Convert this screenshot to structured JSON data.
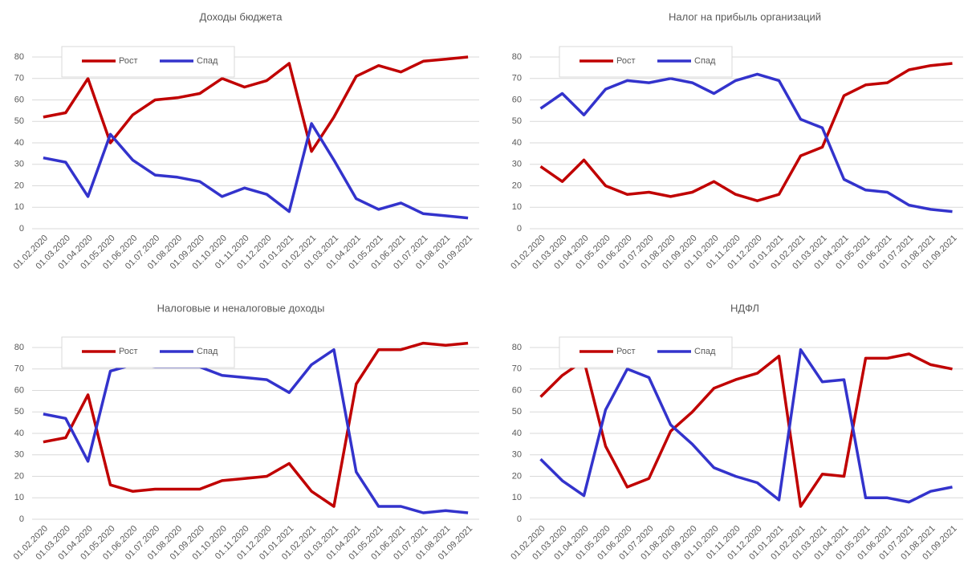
{
  "chart_data": [
    {
      "type": "line",
      "title": "Доходы бюджета",
      "categories": [
        "01.02.2020",
        "01.03.2020",
        "01.04.2020",
        "01.05.2020",
        "01.06.2020",
        "01.07.2020",
        "01.08.2020",
        "01.09.2020",
        "01.10.2020",
        "01.11.2020",
        "01.12.2020",
        "01.01.2021",
        "01.02.2021",
        "01.03.2021",
        "01.04.2021",
        "01.05.2021",
        "01.06.2021",
        "01.07.2021",
        "01.08.2021",
        "01.09.2021"
      ],
      "series": [
        {
          "name": "Рост",
          "color": "#c00000",
          "values": [
            52,
            54,
            70,
            40,
            53,
            60,
            61,
            63,
            70,
            66,
            69,
            77,
            36,
            52,
            71,
            76,
            73,
            78,
            79,
            80
          ]
        },
        {
          "name": "Спад",
          "color": "#3333cc",
          "values": [
            33,
            31,
            15,
            44,
            32,
            25,
            24,
            22,
            15,
            19,
            16,
            8,
            49,
            32,
            14,
            9,
            12,
            7,
            6,
            5
          ]
        }
      ],
      "ylim": [
        0,
        80
      ],
      "yticks": [
        0,
        10,
        20,
        30,
        40,
        50,
        60,
        70,
        80
      ],
      "grid": true,
      "legend": "upper-left"
    },
    {
      "type": "line",
      "title": "Налог  на прибыль организаций",
      "categories": [
        "01.02.2020",
        "01.03.2020",
        "01.04.2020",
        "01.05.2020",
        "01.06.2020",
        "01.07.2020",
        "01.08.2020",
        "01.09.2020",
        "01.10.2020",
        "01.11.2020",
        "01.12.2020",
        "01.01.2021",
        "01.02.2021",
        "01.03.2021",
        "01.04.2021",
        "01.05.2021",
        "01.06.2021",
        "01.07.2021",
        "01.08.2021",
        "01.09.2021"
      ],
      "series": [
        {
          "name": "Рост",
          "color": "#c00000",
          "values": [
            29,
            22,
            32,
            20,
            16,
            17,
            15,
            17,
            22,
            16,
            13,
            16,
            34,
            38,
            62,
            67,
            68,
            74,
            76,
            77
          ]
        },
        {
          "name": "Спад",
          "color": "#3333cc",
          "values": [
            56,
            63,
            53,
            65,
            69,
            68,
            70,
            68,
            63,
            69,
            72,
            69,
            51,
            47,
            23,
            18,
            17,
            11,
            9,
            8
          ]
        }
      ],
      "ylim": [
        0,
        80
      ],
      "yticks": [
        0,
        10,
        20,
        30,
        40,
        50,
        60,
        70,
        80
      ],
      "grid": true,
      "legend": "upper-left"
    },
    {
      "type": "line",
      "title": "Налоговые  и  неналоговые  доходы",
      "categories": [
        "01.02.2020",
        "01.03.2020",
        "01.04.2020",
        "01.05.2020",
        "01.06.2020",
        "01.07.2020",
        "01.08.2020",
        "01.09.2020",
        "01.10.2020",
        "01.11.2020",
        "01.12.2020",
        "01.01.2021",
        "01.02.2021",
        "01.03.2021",
        "01.04.2021",
        "01.05.2021",
        "01.06.2021",
        "01.07.2021",
        "01.08.2021",
        "01.09.2021"
      ],
      "series": [
        {
          "name": "Рост",
          "color": "#c00000",
          "values": [
            36,
            38,
            58,
            16,
            13,
            14,
            14,
            14,
            18,
            19,
            20,
            26,
            13,
            6,
            63,
            79,
            79,
            82,
            81,
            82
          ]
        },
        {
          "name": "Спад",
          "color": "#3333cc",
          "values": [
            49,
            47,
            27,
            69,
            72,
            71,
            71,
            71,
            67,
            66,
            65,
            59,
            72,
            79,
            22,
            6,
            6,
            3,
            4,
            3
          ]
        }
      ],
      "ylim": [
        0,
        85
      ],
      "yticks": [
        0,
        10,
        20,
        30,
        40,
        50,
        60,
        70,
        80
      ],
      "grid": true,
      "legend": "upper-left"
    },
    {
      "type": "line",
      "title": "НДФЛ",
      "categories": [
        "01.02.2020",
        "01.03.2020",
        "01.04.2020",
        "01.05.2020",
        "01.06.2020",
        "01.07.2020",
        "01.08.2020",
        "01.09.2020",
        "01.10.2020",
        "01.11.2020",
        "01.12.2020",
        "01.01.2021",
        "01.02.2021",
        "01.03.2021",
        "01.04.2021",
        "01.05.2021",
        "01.06.2021",
        "01.07.2021",
        "01.08.2021",
        "01.09.2021"
      ],
      "series": [
        {
          "name": "Рост",
          "color": "#c00000",
          "values": [
            57,
            67,
            74,
            34,
            15,
            19,
            41,
            50,
            61,
            65,
            68,
            76,
            6,
            21,
            20,
            75,
            75,
            77,
            72,
            70
          ]
        },
        {
          "name": "Спад",
          "color": "#3333cc",
          "values": [
            28,
            18,
            11,
            51,
            70,
            66,
            44,
            35,
            24,
            20,
            17,
            9,
            79,
            64,
            65,
            10,
            10,
            8,
            13,
            15
          ]
        }
      ],
      "ylim": [
        0,
        85
      ],
      "yticks": [
        0,
        10,
        20,
        30,
        40,
        50,
        60,
        70,
        80
      ],
      "grid": true,
      "legend": "upper-left"
    }
  ]
}
